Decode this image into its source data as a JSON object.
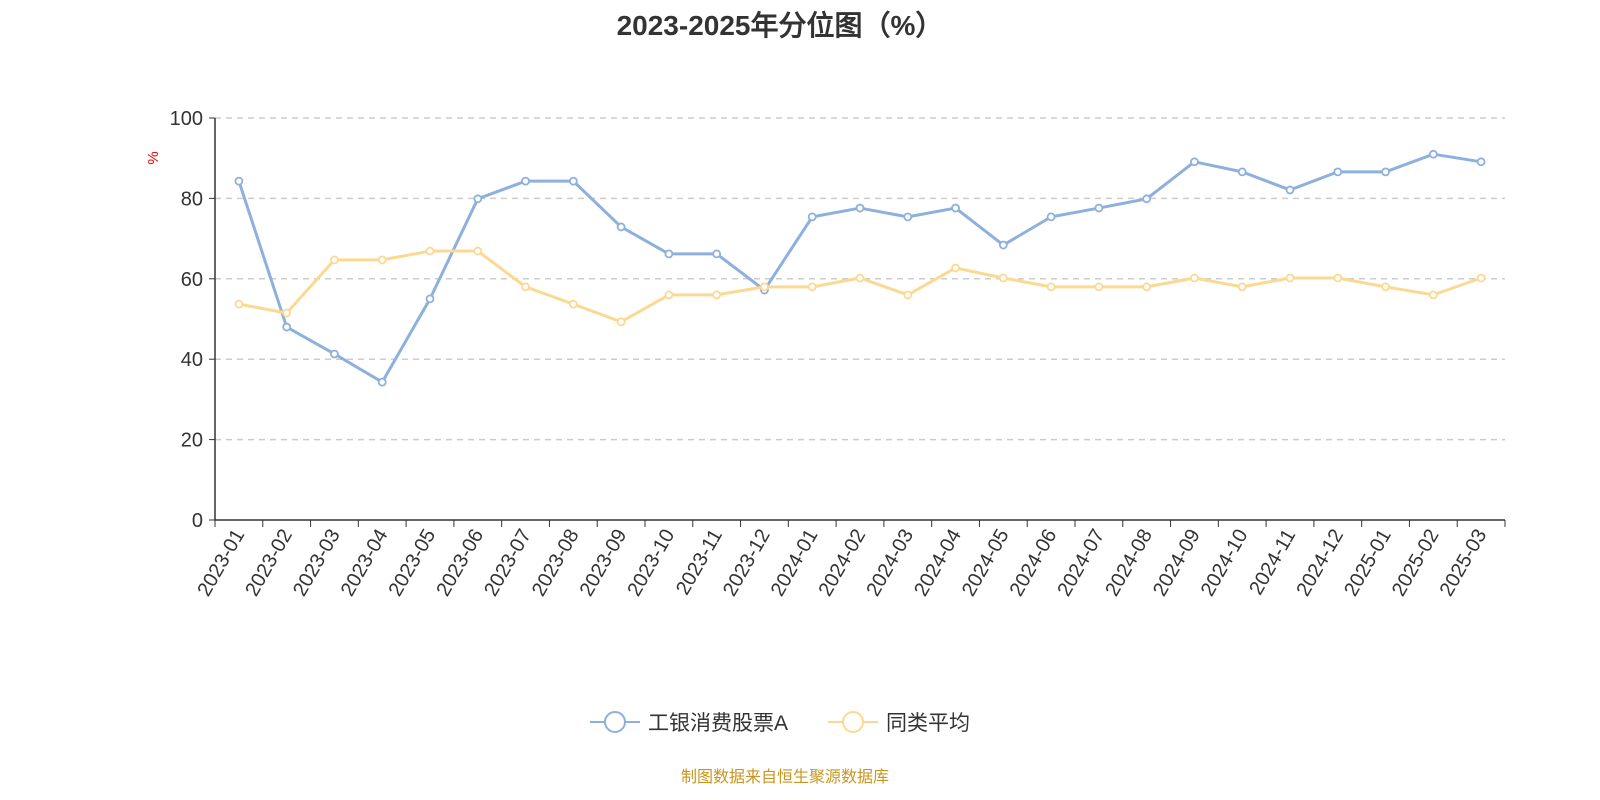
{
  "chart_data": {
    "type": "line",
    "title": "2023-2025年分位图（%）",
    "xlabel": "",
    "ylabel": "%",
    "ylim": [
      0,
      100
    ],
    "yticks": [
      0,
      20,
      40,
      60,
      80,
      100
    ],
    "grid": true,
    "legend_position": "bottom-center",
    "categories": [
      "2023-01",
      "2023-02",
      "2023-03",
      "2023-04",
      "2023-05",
      "2023-06",
      "2023-07",
      "2023-08",
      "2023-09",
      "2023-10",
      "2023-11",
      "2023-12",
      "2024-01",
      "2024-02",
      "2024-03",
      "2024-04",
      "2024-05",
      "2024-06",
      "2024-07",
      "2024-08",
      "2024-09",
      "2024-10",
      "2024-11",
      "2024-12",
      "2025-01",
      "2025-02",
      "2025-03"
    ],
    "series": [
      {
        "name": "工银消费股票A",
        "color": "#8eb0dc",
        "values": [
          84.3,
          48.0,
          41.3,
          34.3,
          55.0,
          79.9,
          84.3,
          84.3,
          72.9,
          66.2,
          66.2,
          57.2,
          75.4,
          77.6,
          75.4,
          77.6,
          68.4,
          75.4,
          77.6,
          79.9,
          89.1,
          86.6,
          82.1,
          86.6,
          86.6,
          91.0,
          89.1
        ]
      },
      {
        "name": "同类平均",
        "color": "#fcd992",
        "values": [
          53.7,
          51.5,
          64.7,
          64.7,
          66.9,
          66.9,
          58.0,
          53.7,
          49.3,
          56.0,
          56.0,
          58.0,
          58.0,
          60.2,
          56.0,
          62.7,
          60.2,
          58.0,
          58.0,
          58.0,
          60.2,
          58.0,
          60.2,
          60.2,
          58.0,
          56.0,
          60.2
        ]
      }
    ]
  },
  "source": "制图数据来自恒生聚源数据库"
}
